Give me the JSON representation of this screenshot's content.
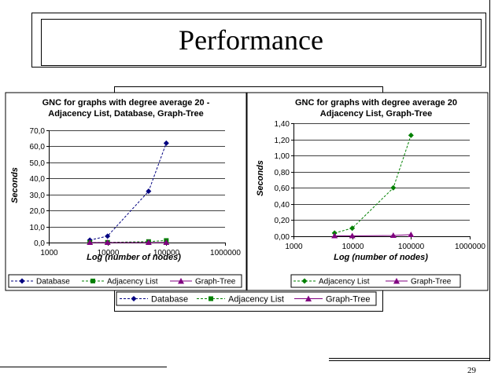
{
  "slide": {
    "title": "Performance",
    "page_number": "29"
  },
  "bottom_legend": [
    {
      "name": "Database",
      "color": "#000080",
      "marker": "diamond",
      "dash": "3,2"
    },
    {
      "name": "Adjacency List",
      "color": "#008000",
      "marker": "square",
      "dash": "3,2"
    },
    {
      "name": "Graph-Tree",
      "color": "#800080",
      "marker": "triangle",
      "dash": ""
    }
  ],
  "chart_data": [
    {
      "type": "line",
      "title": "GNC for graphs with degree average 20 - Adjacency List, Database, Graph-Tree",
      "title_lines": [
        "GNC for graphs with degree average 20 -",
        "Adjacency List, Database, Graph-Tree"
      ],
      "xlabel": "Log (number of nodes)",
      "ylabel": "Seconds",
      "x_scale": "log",
      "xlim": [
        1000,
        1000000
      ],
      "ylim": [
        0,
        70
      ],
      "x_ticks": [
        "1000",
        "10000",
        "100000",
        "1000000"
      ],
      "y_ticks": [
        "0,0",
        "10,0",
        "20,0",
        "30,0",
        "40,0",
        "50,0",
        "60,0",
        "70,0"
      ],
      "grid": "horizontal",
      "legend_position": "bottom",
      "series": [
        {
          "name": "Database",
          "color": "#000080",
          "marker": "diamond",
          "dash": "3,2",
          "x": [
            5000,
            10000,
            50000,
            100000
          ],
          "y": [
            1.5,
            4.0,
            32.0,
            62.0
          ]
        },
        {
          "name": "Adjacency List",
          "color": "#008000",
          "marker": "square",
          "dash": "3,2",
          "x": [
            5000,
            10000,
            50000,
            100000
          ],
          "y": [
            0.04,
            0.1,
            0.6,
            1.25
          ]
        },
        {
          "name": "Graph-Tree",
          "color": "#800080",
          "marker": "triangle",
          "dash": "",
          "x": [
            5000,
            10000,
            50000,
            100000
          ],
          "y": [
            0.005,
            0.005,
            0.01,
            0.02
          ]
        }
      ]
    },
    {
      "type": "line",
      "title": "GNC for graphs with degree average 20 Adjacency List, Graph-Tree",
      "title_lines": [
        "GNC for graphs with degree average 20",
        "Adjacency List, Graph-Tree"
      ],
      "xlabel": "Log (number of nodes)",
      "ylabel": "Seconds",
      "x_scale": "log",
      "xlim": [
        1000,
        1000000
      ],
      "ylim": [
        0,
        1.4
      ],
      "x_ticks": [
        "1000",
        "10000",
        "100000",
        "1000000"
      ],
      "y_ticks": [
        "0,00",
        "0,20",
        "0,40",
        "0,60",
        "0,80",
        "1,00",
        "1,20",
        "1,40"
      ],
      "grid": "horizontal",
      "legend_position": "bottom",
      "series": [
        {
          "name": "Adjacency List",
          "color": "#008000",
          "marker": "diamond",
          "dash": "3,2",
          "x": [
            5000,
            10000,
            50000,
            100000
          ],
          "y": [
            0.04,
            0.1,
            0.6,
            1.25
          ]
        },
        {
          "name": "Graph-Tree",
          "color": "#800080",
          "marker": "triangle",
          "dash": "",
          "x": [
            5000,
            10000,
            50000,
            100000
          ],
          "y": [
            0.005,
            0.005,
            0.01,
            0.02
          ]
        }
      ]
    }
  ]
}
